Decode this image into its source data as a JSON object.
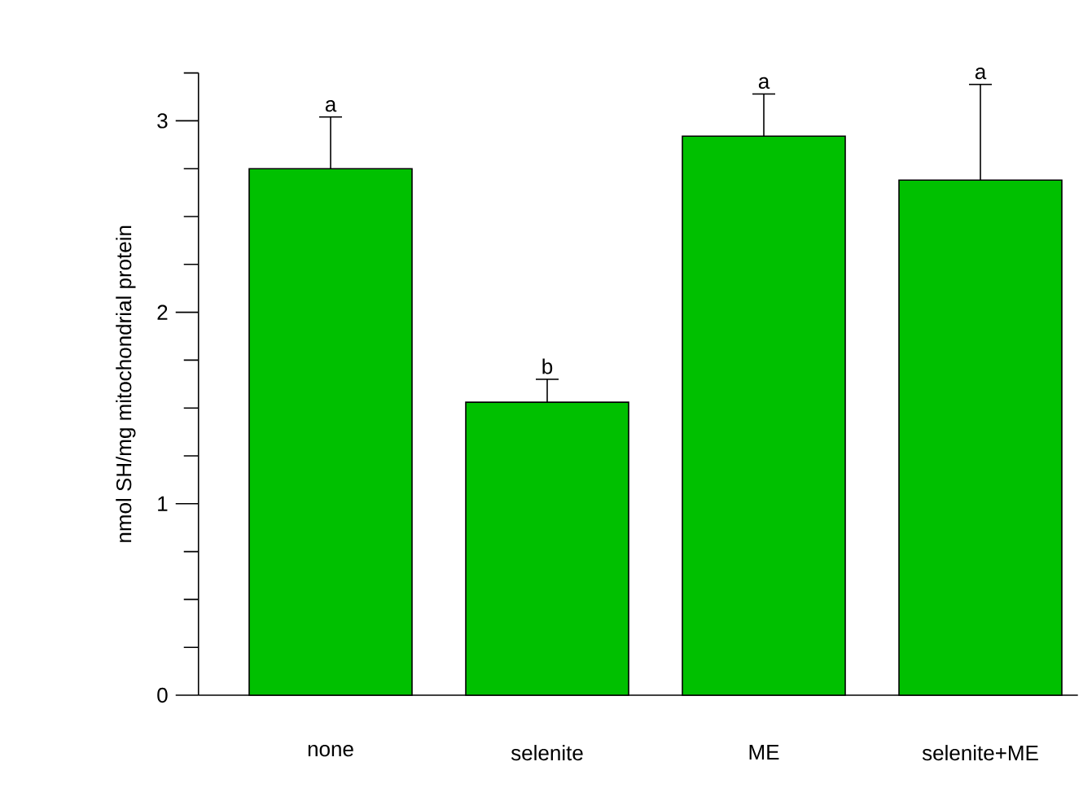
{
  "chart_data": {
    "type": "bar",
    "ylabel": "nmol SH/mg mitochondrial protein",
    "categories": [
      "none",
      "selenite",
      "ME",
      "selenite+ME"
    ],
    "values": [
      2.75,
      1.53,
      2.92,
      2.69
    ],
    "errors": [
      0.27,
      0.12,
      0.22,
      0.5
    ],
    "color": "#00c000",
    "ylim": [
      0,
      3.25
    ],
    "yticks": [
      0,
      {
        "value": 0.25,
        "label": null
      },
      {
        "value": 0.5,
        "label": null
      },
      {
        "value": 0.75,
        "label": null
      },
      1,
      {
        "value": 1.25,
        "label": null
      },
      {
        "value": 1.5,
        "label": null
      },
      {
        "value": 1.75,
        "label": null
      },
      2,
      {
        "value": 2.25,
        "label": null
      },
      {
        "value": 2.5,
        "label": null
      },
      {
        "value": 2.75,
        "label": null
      },
      3,
      {
        "value": 3.25,
        "label": null
      }
    ],
    "annotations": [
      {
        "text": "a",
        "x": "none",
        "y": 3.02
      },
      {
        "text": "b",
        "x": "selenite",
        "y": 1.65
      },
      {
        "text": "a",
        "x": "ME",
        "y": 3.14
      },
      {
        "text": "a",
        "x": "selenite+ME",
        "y": 3.19
      }
    ]
  }
}
